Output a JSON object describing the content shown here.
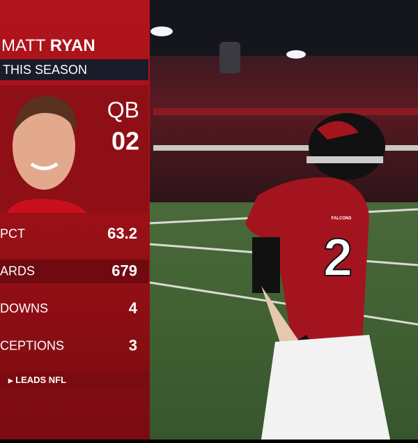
{
  "graphic": {
    "first_name": "MATT",
    "last_name": "RYAN",
    "period": "THIS SEASON",
    "position": "QB",
    "number": "02",
    "stats": [
      {
        "label": "PCT",
        "value": 63.2
      },
      {
        "label": "ARDS",
        "value": 679
      },
      {
        "label": "DOWNS",
        "value": 4
      },
      {
        "label": "CEPTIONS",
        "value": 3
      }
    ],
    "footer": "LEADS NFL"
  },
  "scene": {
    "jersey_number": "2",
    "jersey_text": "FALCONS"
  }
}
